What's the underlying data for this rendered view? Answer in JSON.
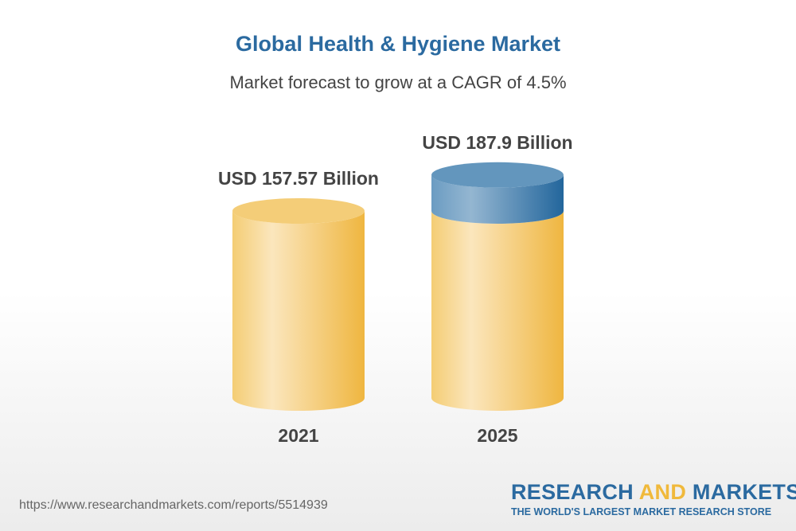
{
  "chart_data": {
    "type": "bar",
    "style": "3d-cylinder",
    "title": "Global Health & Hygiene Market",
    "subtitle": "Market forecast to grow at a CAGR of 4.5%",
    "categories": [
      "2021",
      "2025"
    ],
    "values": [
      157.57,
      187.9
    ],
    "data_labels": [
      "USD 157.57 Billion",
      "USD 187.9 Billion"
    ],
    "unit": "USD Billion",
    "colors": {
      "base": "#f2c45e",
      "growth": "#4a86b5"
    },
    "grid": false
  },
  "footer": {
    "url": "https://www.researchandmarkets.com/reports/5514939",
    "logo_part1": "RESEARCH ",
    "logo_part2": "AND",
    "logo_part3": " MARKETS",
    "tagline": "THE WORLD'S LARGEST MARKET RESEARCH STORE"
  }
}
